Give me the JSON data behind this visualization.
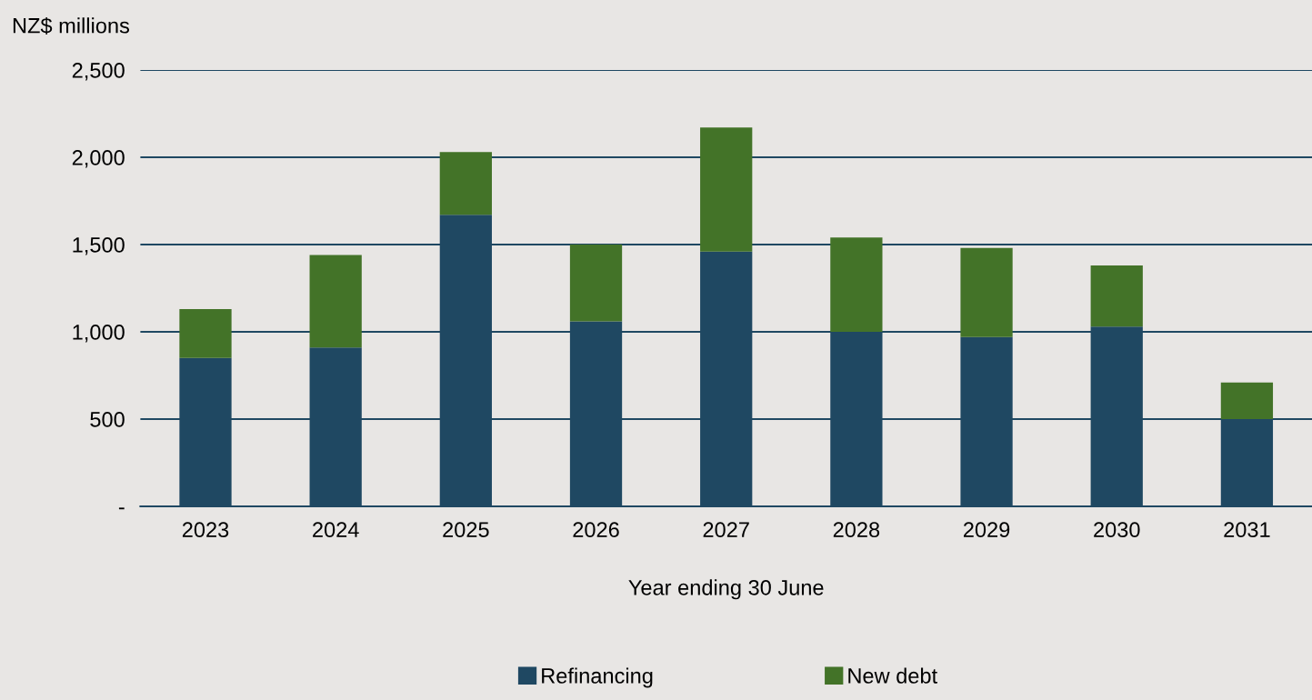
{
  "chart_data": {
    "type": "bar",
    "stacked": true,
    "ylabel": "NZ$ millions",
    "xlabel": "Year ending 30 June",
    "categories": [
      "2023",
      "2024",
      "2025",
      "2026",
      "2027",
      "2028",
      "2029",
      "2030",
      "2031"
    ],
    "series": [
      {
        "name": "Refinancing",
        "color": "#1f4862",
        "values": [
          850,
          910,
          1670,
          1060,
          1460,
          1000,
          970,
          1030,
          500
        ]
      },
      {
        "name": "New debt",
        "color": "#437328",
        "values": [
          280,
          530,
          360,
          440,
          710,
          540,
          510,
          350,
          210
        ]
      }
    ],
    "ylim": [
      0,
      2500
    ],
    "yticks": [
      {
        "value": 0,
        "label": "-"
      },
      500,
      {
        "value": 1000,
        "label": "1,000"
      },
      {
        "value": 1500,
        "label": "1,500"
      },
      {
        "value": 2000,
        "label": "2,000"
      },
      {
        "value": 2500,
        "label": "2,500"
      }
    ],
    "grid": "y",
    "legend": "bottom"
  }
}
